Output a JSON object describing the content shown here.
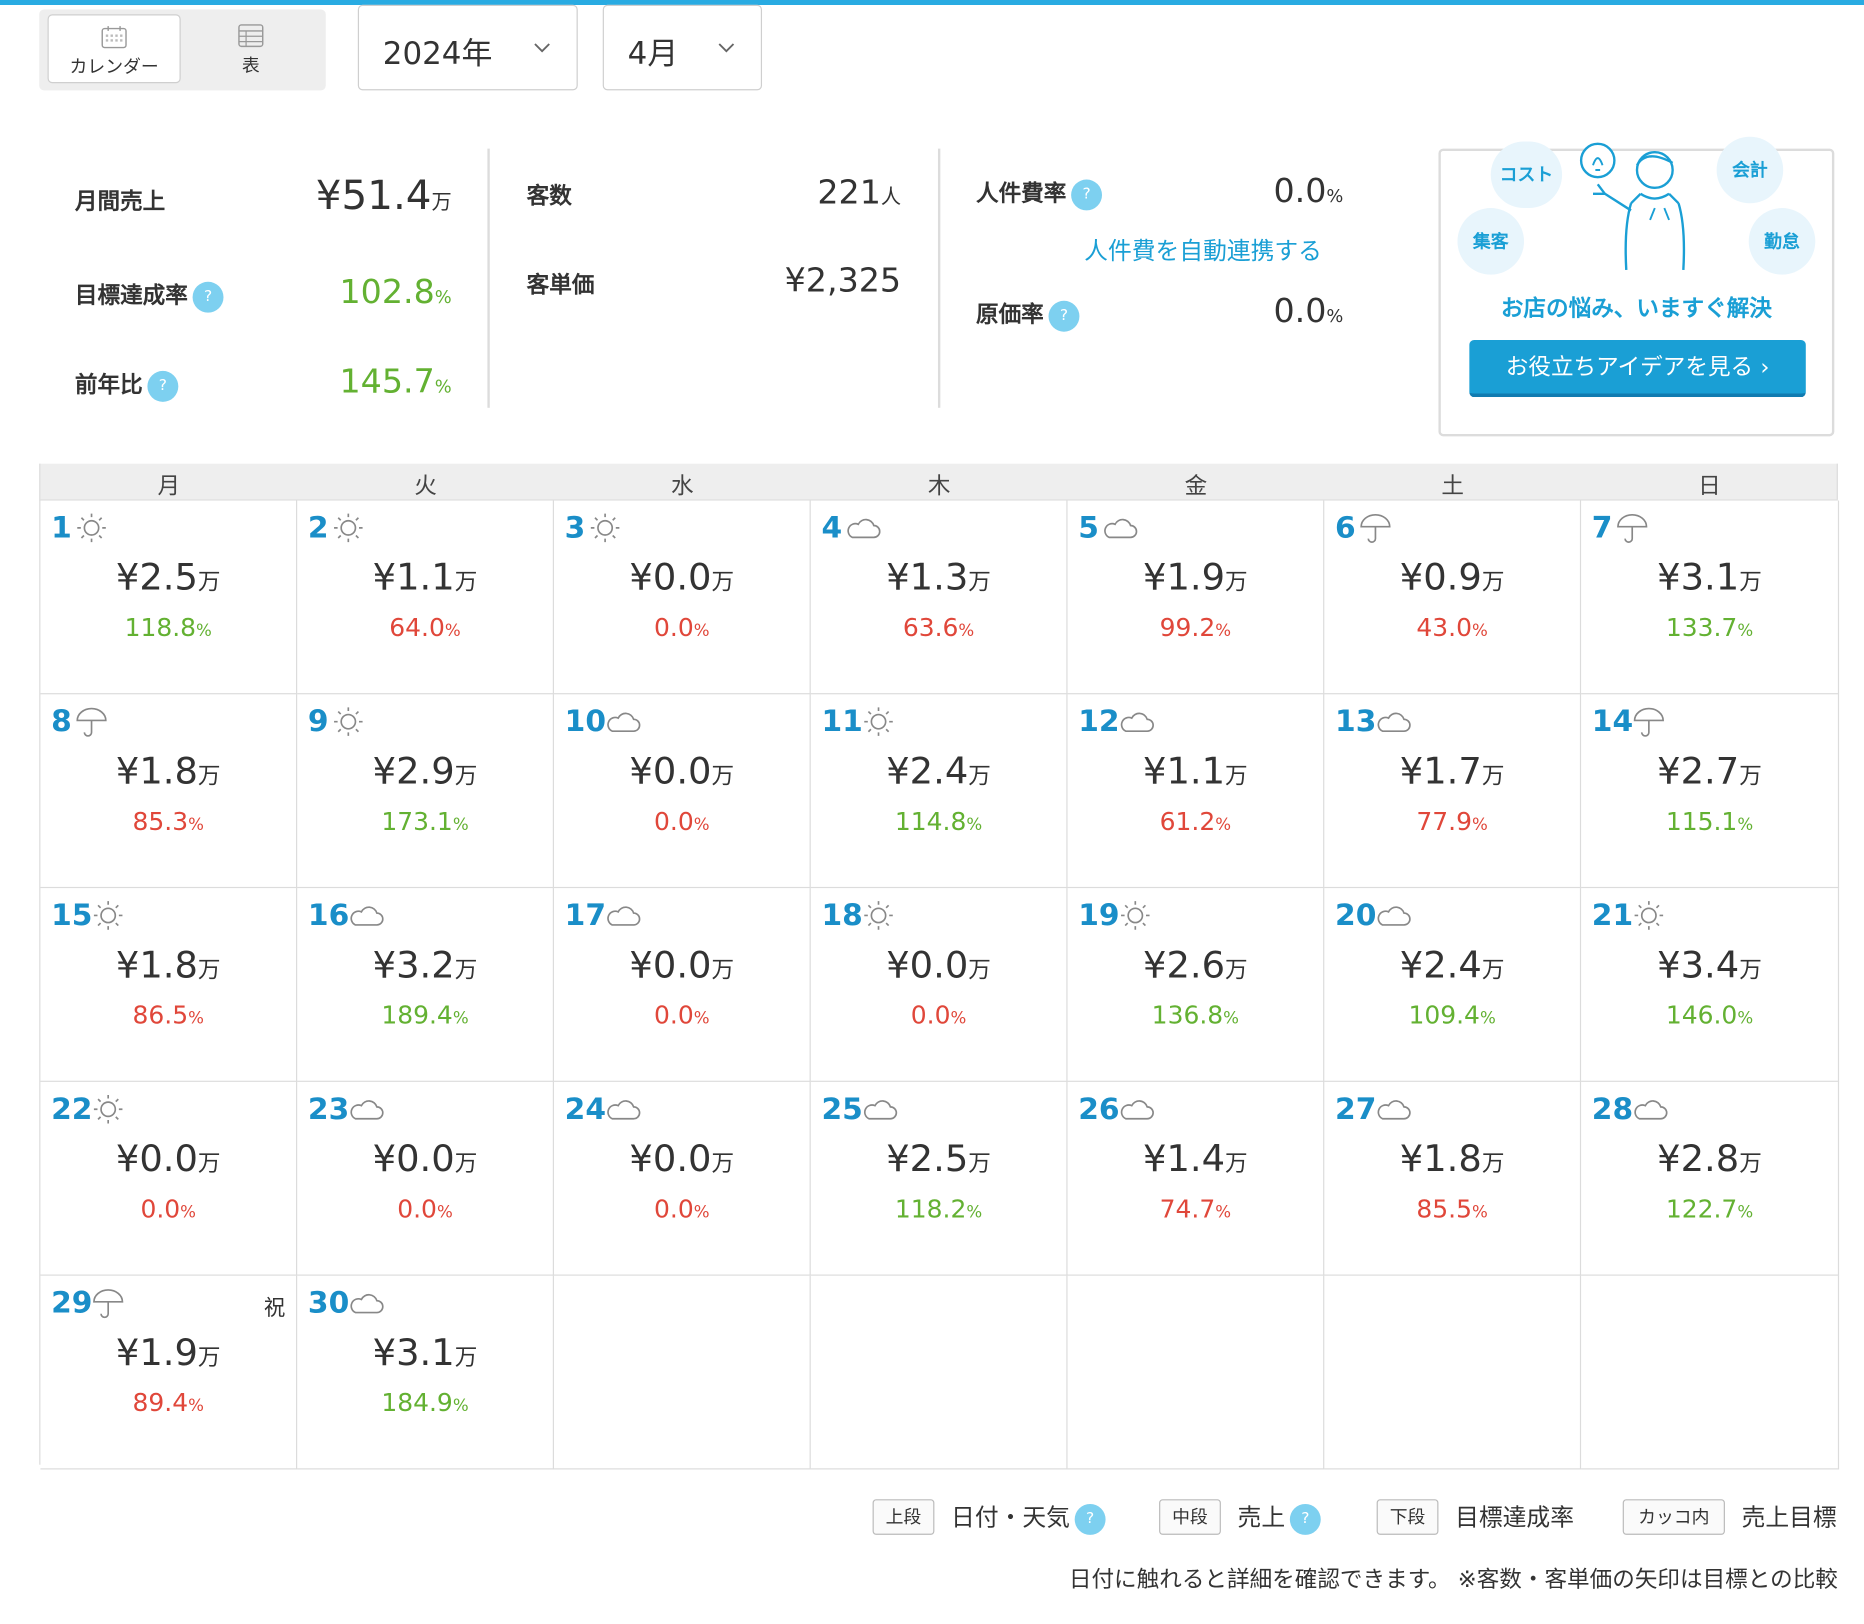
{
  "view_toggle": {
    "calendar_label": "カレンダー",
    "table_label": "表"
  },
  "selectors": {
    "year": "2024年",
    "month": "4月"
  },
  "kpi": {
    "monthly_sales_label": "月間売上",
    "monthly_sales_value": "¥51.4",
    "monthly_sales_unit": "万",
    "target_rate_label": "目標達成率",
    "target_rate_value": "102.8",
    "prev_year_label": "前年比",
    "prev_year_value": "145.7",
    "percent_unit": "%",
    "customers_label": "客数",
    "customers_value": "221",
    "customers_unit": "人",
    "avg_spend_label": "客単価",
    "avg_spend_value": "¥2,325",
    "labor_rate_label": "人件費率",
    "labor_rate_value": "0.0",
    "labor_link": "人件費を自動連携する",
    "cost_rate_label": "原価率",
    "cost_rate_value": "0.0",
    "help_mark": "?"
  },
  "promo": {
    "bubbles": [
      "コスト",
      "会計",
      "集客",
      "勤怠"
    ],
    "title": "お店の悩み、いますぐ解決",
    "button": "お役立ちアイデアを見る"
  },
  "calendar": {
    "weekdays": [
      "月",
      "火",
      "水",
      "木",
      "金",
      "土",
      "日"
    ],
    "yen_unit": "万",
    "percent_unit": "%",
    "days": [
      {
        "day": "1",
        "weather": "sun",
        "sales": "¥2.5",
        "rate": "118.8",
        "status": "good"
      },
      {
        "day": "2",
        "weather": "sun",
        "sales": "¥1.1",
        "rate": "64.0",
        "status": "bad"
      },
      {
        "day": "3",
        "weather": "sun",
        "sales": "¥0.0",
        "rate": "0.0",
        "status": "bad"
      },
      {
        "day": "4",
        "weather": "cloud",
        "sales": "¥1.3",
        "rate": "63.6",
        "status": "bad"
      },
      {
        "day": "5",
        "weather": "cloud",
        "sales": "¥1.9",
        "rate": "99.2",
        "status": "bad"
      },
      {
        "day": "6",
        "weather": "rain",
        "sales": "¥0.9",
        "rate": "43.0",
        "status": "bad"
      },
      {
        "day": "7",
        "weather": "rain",
        "sales": "¥3.1",
        "rate": "133.7",
        "status": "good"
      },
      {
        "day": "8",
        "weather": "rain",
        "sales": "¥1.8",
        "rate": "85.3",
        "status": "bad"
      },
      {
        "day": "9",
        "weather": "sun",
        "sales": "¥2.9",
        "rate": "173.1",
        "status": "good"
      },
      {
        "day": "10",
        "weather": "cloud",
        "sales": "¥0.0",
        "rate": "0.0",
        "status": "bad"
      },
      {
        "day": "11",
        "weather": "sun",
        "sales": "¥2.4",
        "rate": "114.8",
        "status": "good"
      },
      {
        "day": "12",
        "weather": "cloud",
        "sales": "¥1.1",
        "rate": "61.2",
        "status": "bad"
      },
      {
        "day": "13",
        "weather": "cloud",
        "sales": "¥1.7",
        "rate": "77.9",
        "status": "bad"
      },
      {
        "day": "14",
        "weather": "rain",
        "sales": "¥2.7",
        "rate": "115.1",
        "status": "good"
      },
      {
        "day": "15",
        "weather": "sun",
        "sales": "¥1.8",
        "rate": "86.5",
        "status": "bad"
      },
      {
        "day": "16",
        "weather": "cloud",
        "sales": "¥3.2",
        "rate": "189.4",
        "status": "good"
      },
      {
        "day": "17",
        "weather": "cloud",
        "sales": "¥0.0",
        "rate": "0.0",
        "status": "bad"
      },
      {
        "day": "18",
        "weather": "sun",
        "sales": "¥0.0",
        "rate": "0.0",
        "status": "bad"
      },
      {
        "day": "19",
        "weather": "sun",
        "sales": "¥2.6",
        "rate": "136.8",
        "status": "good"
      },
      {
        "day": "20",
        "weather": "cloud",
        "sales": "¥2.4",
        "rate": "109.4",
        "status": "good"
      },
      {
        "day": "21",
        "weather": "sun",
        "sales": "¥3.4",
        "rate": "146.0",
        "status": "good"
      },
      {
        "day": "22",
        "weather": "sun",
        "sales": "¥0.0",
        "rate": "0.0",
        "status": "bad"
      },
      {
        "day": "23",
        "weather": "cloud",
        "sales": "¥0.0",
        "rate": "0.0",
        "status": "bad"
      },
      {
        "day": "24",
        "weather": "cloud",
        "sales": "¥0.0",
        "rate": "0.0",
        "status": "bad"
      },
      {
        "day": "25",
        "weather": "cloud",
        "sales": "¥2.5",
        "rate": "118.2",
        "status": "good"
      },
      {
        "day": "26",
        "weather": "cloud",
        "sales": "¥1.4",
        "rate": "74.7",
        "status": "bad"
      },
      {
        "day": "27",
        "weather": "cloud",
        "sales": "¥1.8",
        "rate": "85.5",
        "status": "bad"
      },
      {
        "day": "28",
        "weather": "cloud",
        "sales": "¥2.8",
        "rate": "122.7",
        "status": "good"
      },
      {
        "day": "29",
        "weather": "rain",
        "sales": "¥1.9",
        "rate": "89.4",
        "status": "bad",
        "holiday": "祝"
      },
      {
        "day": "30",
        "weather": "cloud",
        "sales": "¥3.1",
        "rate": "184.9",
        "status": "good"
      }
    ]
  },
  "legend": {
    "top_tag": "上段",
    "top_text": "日付・天気",
    "mid_tag": "中段",
    "mid_text": "売上",
    "bottom_tag": "下段",
    "bottom_text": "目標達成率",
    "paren_tag": "カッコ内",
    "paren_text": "売上目標",
    "note": "日付に触れると詳細を確認できます。 ※客数・客単価の矢印は目標との比較"
  },
  "colors": {
    "accent": "#1a9fd5",
    "good": "#63b132",
    "bad": "#e0473a",
    "topbar": "#29abe2"
  }
}
